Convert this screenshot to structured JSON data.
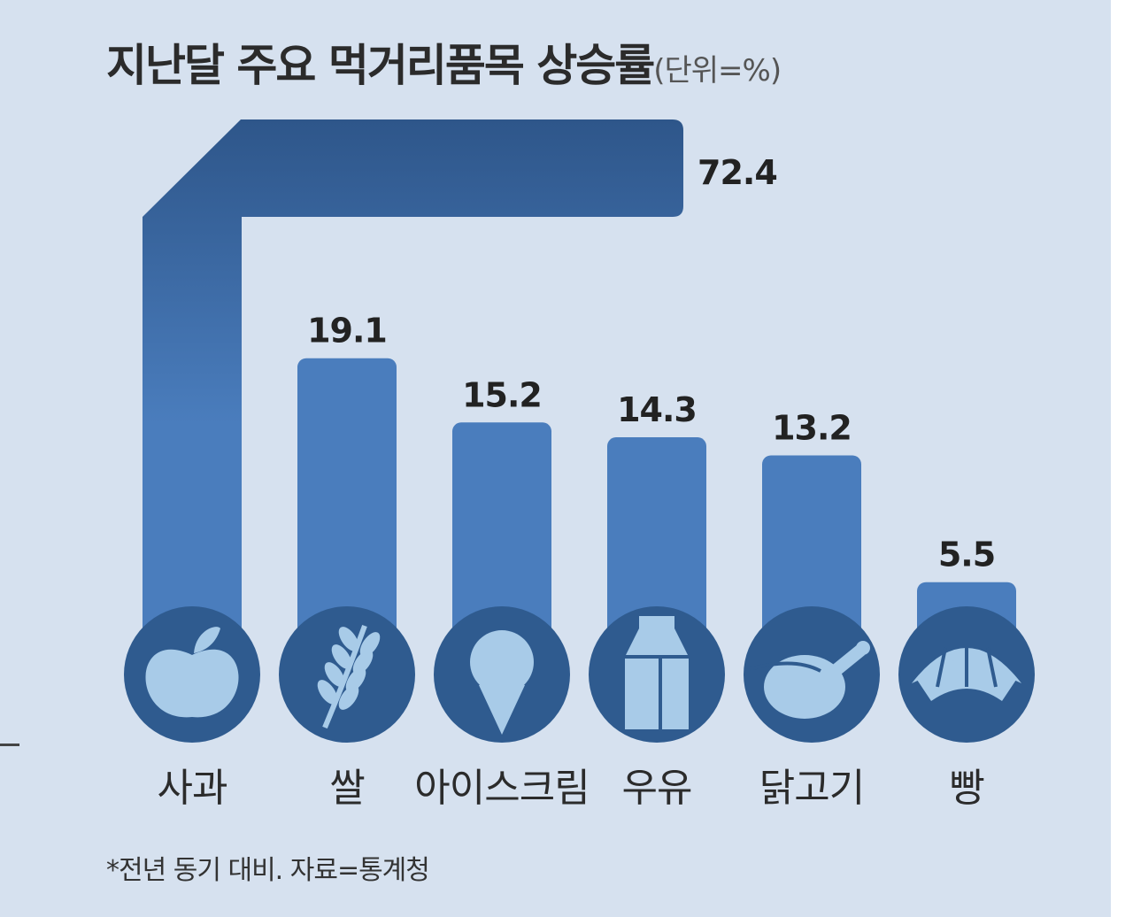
{
  "header": {
    "title": "지난달 주요 먹거리품목 상승률",
    "unit": "(단위=%)"
  },
  "footnote": "*전년 동기 대비. 자료=통계청",
  "colors": {
    "background": "#d6e1ef",
    "bar": "#4a7dbd",
    "icon_circle": "#2f5b8f",
    "icon_fill": "#a8cbe8"
  },
  "chart_data": {
    "type": "bar",
    "title": "지난달 주요 먹거리품목 상승률",
    "unit": "%",
    "categories": [
      "사과",
      "쌀",
      "아이스크림",
      "우유",
      "닭고기",
      "빵"
    ],
    "values": [
      72.4,
      19.1,
      15.2,
      14.3,
      13.2,
      5.5
    ],
    "value_labels": [
      "72.4",
      "19.1",
      "15.2",
      "14.3",
      "13.2",
      "5.5"
    ],
    "icons": [
      "apple-icon",
      "rice-icon",
      "ice-cream-icon",
      "milk-icon",
      "chicken-icon",
      "bread-icon"
    ],
    "xlabel": "",
    "ylabel": "",
    "grid": false,
    "legend": "none"
  }
}
